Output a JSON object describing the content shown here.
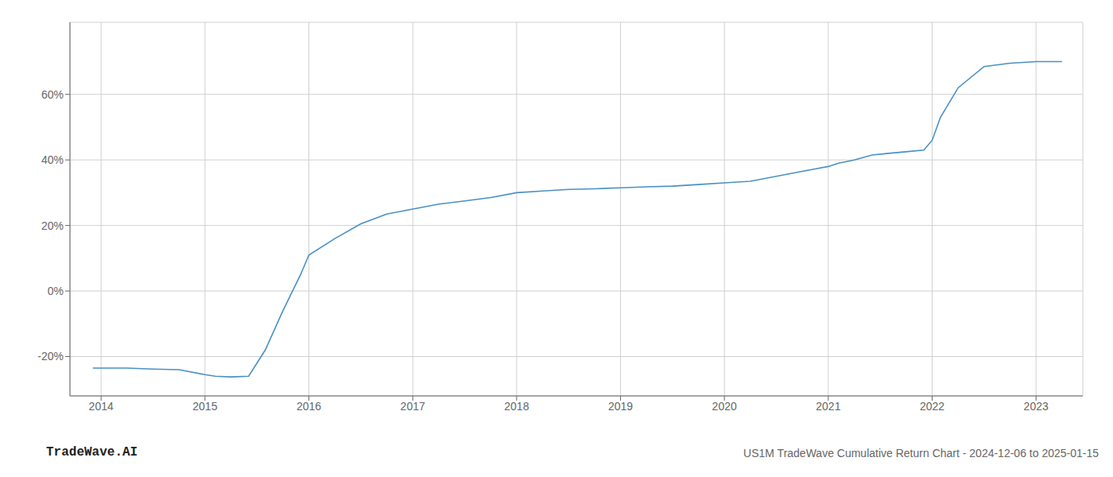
{
  "chart_data": {
    "type": "line",
    "title": "US1M TradeWave Cumulative Return Chart - 2024-12-06 to 2025-01-15",
    "annotations": [
      "TradeWave.AI"
    ],
    "color": "#4a90c4",
    "grid": true,
    "x": [
      2013.92,
      2014.0,
      2014.25,
      2014.5,
      2014.75,
      2015.0,
      2015.1,
      2015.25,
      2015.42,
      2015.58,
      2015.75,
      2015.92,
      2016.0,
      2016.25,
      2016.5,
      2016.75,
      2017.0,
      2017.25,
      2017.5,
      2017.75,
      2018.0,
      2018.25,
      2018.5,
      2018.75,
      2019.0,
      2019.25,
      2019.5,
      2019.75,
      2020.0,
      2020.25,
      2020.5,
      2020.75,
      2021.0,
      2021.1,
      2021.25,
      2021.42,
      2021.58,
      2021.75,
      2021.92,
      2022.0,
      2022.08,
      2022.25,
      2022.5,
      2022.75,
      2023.0,
      2023.25
    ],
    "values": [
      -23.5,
      -23.5,
      -23.5,
      -23.8,
      -24.0,
      -25.5,
      -26.0,
      -26.2,
      -26.0,
      -18.0,
      -6.0,
      5.0,
      11.0,
      16.0,
      20.5,
      23.5,
      25.0,
      26.5,
      27.5,
      28.5,
      30.0,
      30.5,
      31.0,
      31.2,
      31.5,
      31.8,
      32.0,
      32.5,
      33.0,
      33.5,
      35.0,
      36.5,
      38.0,
      39.0,
      40.0,
      41.5,
      42.0,
      42.5,
      43.0,
      46.0,
      53.0,
      62.0,
      68.5,
      69.5,
      70.0,
      70.0
    ],
    "xlim": [
      2013.7,
      2023.45
    ],
    "ylim": [
      -32,
      82
    ],
    "xticks": [
      2014,
      2015,
      2016,
      2017,
      2018,
      2019,
      2020,
      2021,
      2022,
      2023
    ],
    "yticks": [
      {
        "value": -20,
        "label": "-20%"
      },
      {
        "value": 0,
        "label": "0%"
      },
      {
        "value": 20,
        "label": "20%"
      },
      {
        "value": 40,
        "label": "40%"
      },
      {
        "value": 60,
        "label": "60%"
      }
    ]
  }
}
